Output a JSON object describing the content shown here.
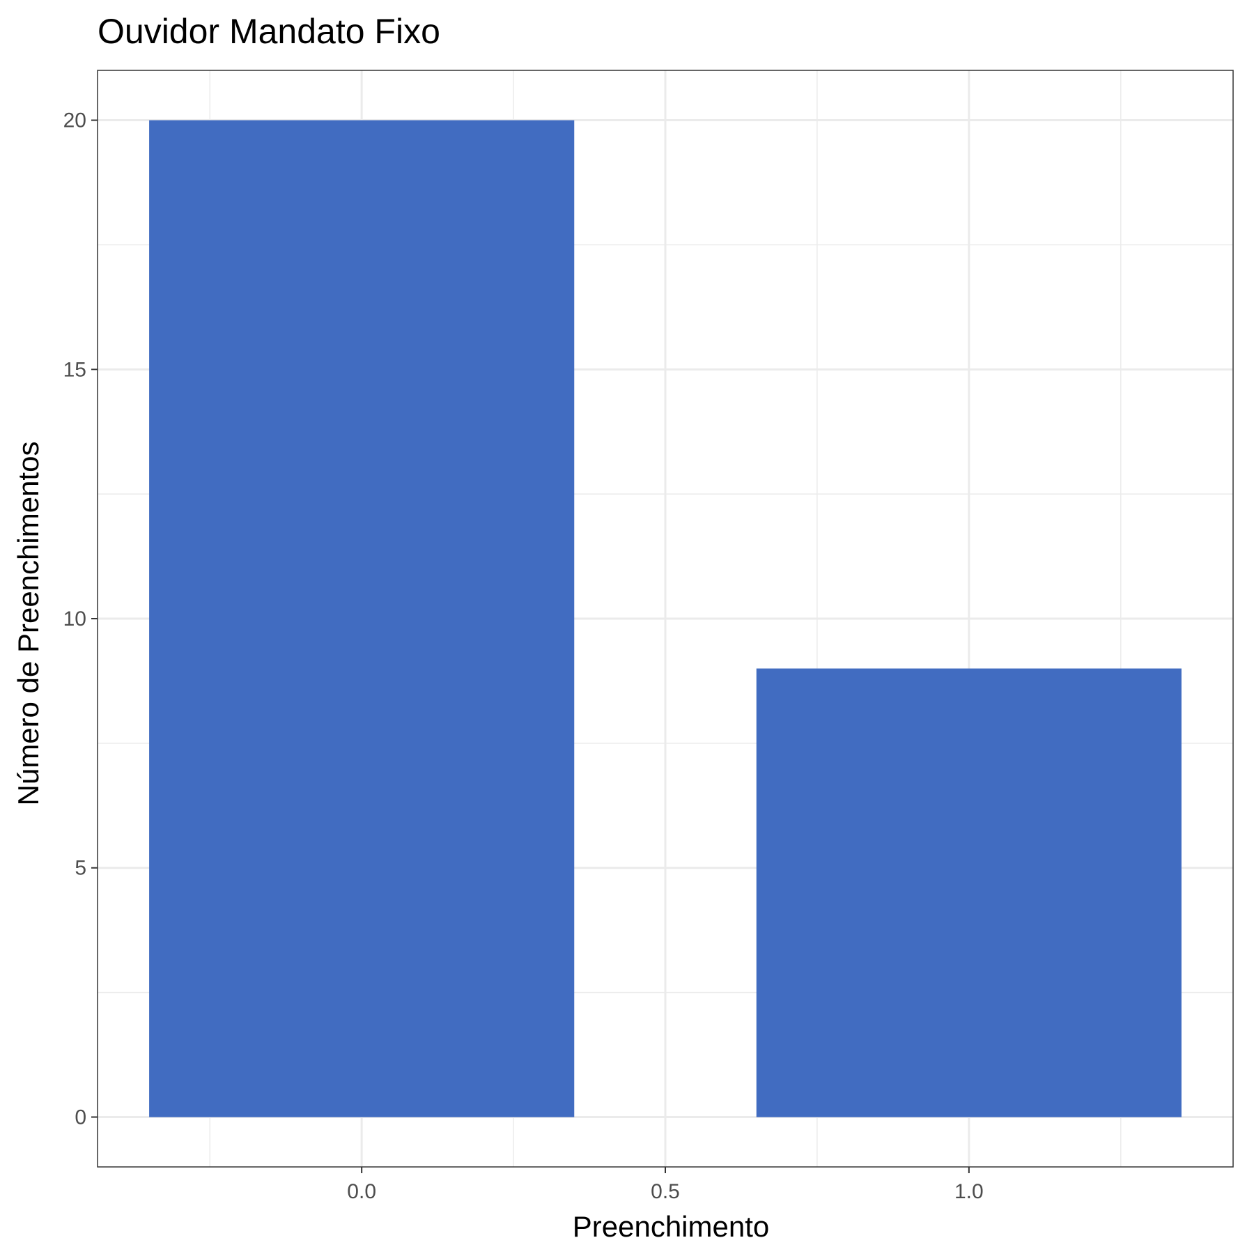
{
  "chart_data": {
    "type": "bar",
    "title": "Ouvidor Mandato Fixo",
    "xlabel": "Preenchimento",
    "ylabel": "Número de Preenchimentos",
    "x": [
      0,
      1
    ],
    "values": [
      20,
      9
    ],
    "bar_width": 0.7,
    "xlim": [
      -0.435,
      1.435
    ],
    "ylim": [
      -1,
      21
    ],
    "x_ticks": [
      0.0,
      0.5,
      1.0
    ],
    "x_tick_labels": [
      "0.0",
      "0.5",
      "1.0"
    ],
    "y_ticks": [
      0,
      5,
      10,
      15,
      20
    ],
    "y_tick_labels": [
      "0",
      "5",
      "10",
      "15",
      "20"
    ],
    "bar_color": "#416cc1",
    "grid": true,
    "legend": "none"
  }
}
